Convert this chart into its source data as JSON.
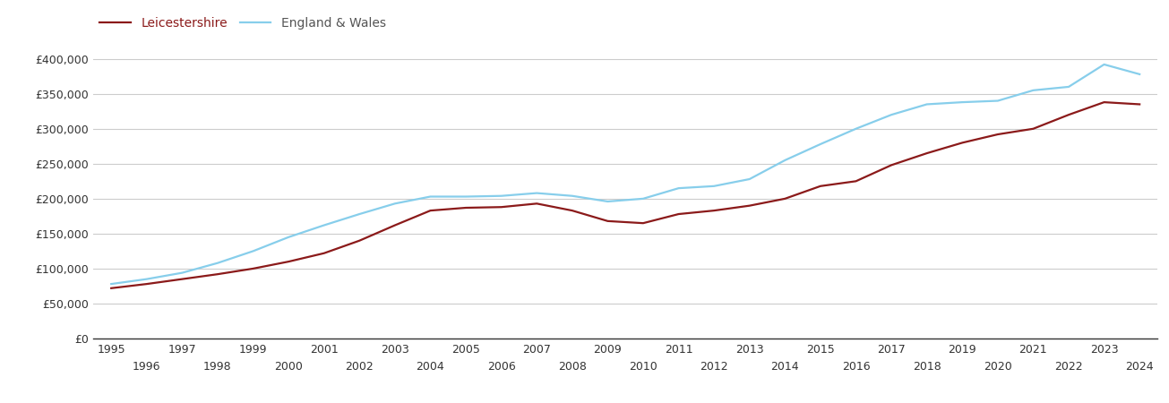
{
  "leicestershire": {
    "years": [
      1995,
      1996,
      1997,
      1998,
      1999,
      2000,
      2001,
      2002,
      2003,
      2004,
      2005,
      2006,
      2007,
      2008,
      2009,
      2010,
      2011,
      2012,
      2013,
      2014,
      2015,
      2016,
      2017,
      2018,
      2019,
      2020,
      2021,
      2022,
      2023,
      2024
    ],
    "values": [
      72000,
      78000,
      85000,
      92000,
      100000,
      110000,
      122000,
      140000,
      162000,
      183000,
      187000,
      188000,
      193000,
      183000,
      168000,
      165000,
      178000,
      183000,
      190000,
      200000,
      218000,
      225000,
      248000,
      265000,
      280000,
      292000,
      300000,
      320000,
      338000,
      335000
    ]
  },
  "england_wales": {
    "years": [
      1995,
      1996,
      1997,
      1998,
      1999,
      2000,
      2001,
      2002,
      2003,
      2004,
      2005,
      2006,
      2007,
      2008,
      2009,
      2010,
      2011,
      2012,
      2013,
      2014,
      2015,
      2016,
      2017,
      2018,
      2019,
      2020,
      2021,
      2022,
      2023,
      2024
    ],
    "values": [
      78000,
      85000,
      94000,
      108000,
      125000,
      145000,
      162000,
      178000,
      193000,
      203000,
      203000,
      204000,
      208000,
      204000,
      196000,
      200000,
      215000,
      218000,
      228000,
      255000,
      278000,
      300000,
      320000,
      335000,
      338000,
      340000,
      355000,
      360000,
      392000,
      378000
    ]
  },
  "leicestershire_color": "#8B1A1A",
  "england_wales_color": "#87CEEB",
  "leicestershire_label": "Leicestershire",
  "england_wales_label": "England & Wales",
  "ytick_values": [
    0,
    50000,
    100000,
    150000,
    200000,
    250000,
    300000,
    350000,
    400000
  ],
  "ytick_labels": [
    "£0",
    "£50,000",
    "£100,000",
    "£150,000",
    "£200,000",
    "£250,000",
    "£300,000",
    "£350,000",
    "£400,000"
  ],
  "ylim": [
    0,
    415000
  ],
  "xlim_min": 1994.5,
  "xlim_max": 2024.5,
  "background_color": "#ffffff",
  "grid_color": "#cccccc",
  "line_width": 1.6,
  "odd_years": [
    1995,
    1997,
    1999,
    2001,
    2003,
    2005,
    2007,
    2009,
    2011,
    2013,
    2015,
    2017,
    2019,
    2021,
    2023
  ],
  "even_years": [
    1996,
    1998,
    2000,
    2002,
    2004,
    2006,
    2008,
    2010,
    2012,
    2014,
    2016,
    2018,
    2020,
    2022,
    2024
  ]
}
